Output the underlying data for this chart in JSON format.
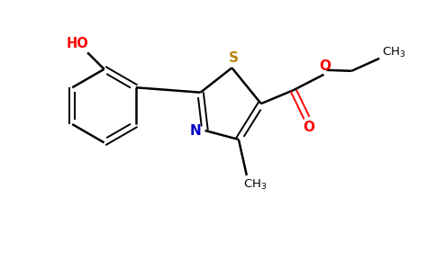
{
  "background_color": "#ffffff",
  "bond_color": "#000000",
  "sulfur_color": "#b8860b",
  "nitrogen_color": "#0000cc",
  "oxygen_color": "#ff0000",
  "ho_color": "#ff0000",
  "figsize": [
    4.84,
    3.0
  ],
  "dpi": 100,
  "xlim": [
    0,
    9.68
  ],
  "ylim": [
    0,
    6.0
  ]
}
